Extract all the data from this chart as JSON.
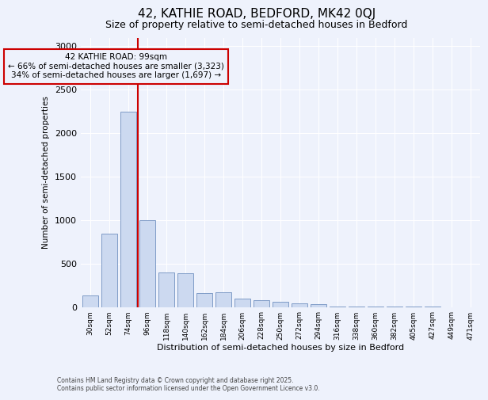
{
  "title1": "42, KATHIE ROAD, BEDFORD, MK42 0QJ",
  "title2": "Size of property relative to semi-detached houses in Bedford",
  "xlabel": "Distribution of semi-detached houses by size in Bedford",
  "ylabel": "Number of semi-detached properties",
  "footer1": "Contains HM Land Registry data © Crown copyright and database right 2025.",
  "footer2": "Contains public sector information licensed under the Open Government Licence v3.0.",
  "categories": [
    "30sqm",
    "52sqm",
    "74sqm",
    "96sqm",
    "118sqm",
    "140sqm",
    "162sqm",
    "184sqm",
    "206sqm",
    "228sqm",
    "250sqm",
    "272sqm",
    "294sqm",
    "316sqm",
    "338sqm",
    "360sqm",
    "382sqm",
    "405sqm",
    "427sqm",
    "449sqm",
    "471sqm"
  ],
  "values": [
    130,
    840,
    2250,
    1000,
    400,
    390,
    160,
    170,
    100,
    75,
    55,
    45,
    30,
    5,
    4,
    2,
    2,
    1,
    1,
    0,
    0
  ],
  "bar_color": "#ccd9f0",
  "bar_edge_color": "#7090c0",
  "vline_color": "#cc0000",
  "vline_index": 3,
  "annotation_text": "42 KATHIE ROAD: 99sqm\n← 66% of semi-detached houses are smaller (3,323)\n34% of semi-detached houses are larger (1,697) →",
  "annotation_box_color": "#cc0000",
  "ylim": [
    0,
    3100
  ],
  "yticks": [
    0,
    500,
    1000,
    1500,
    2000,
    2500,
    3000
  ],
  "bg_color": "#eef2fc",
  "grid_color": "#ffffff",
  "title1_fontsize": 11,
  "title2_fontsize": 9,
  "ann_fontsize": 7.5
}
